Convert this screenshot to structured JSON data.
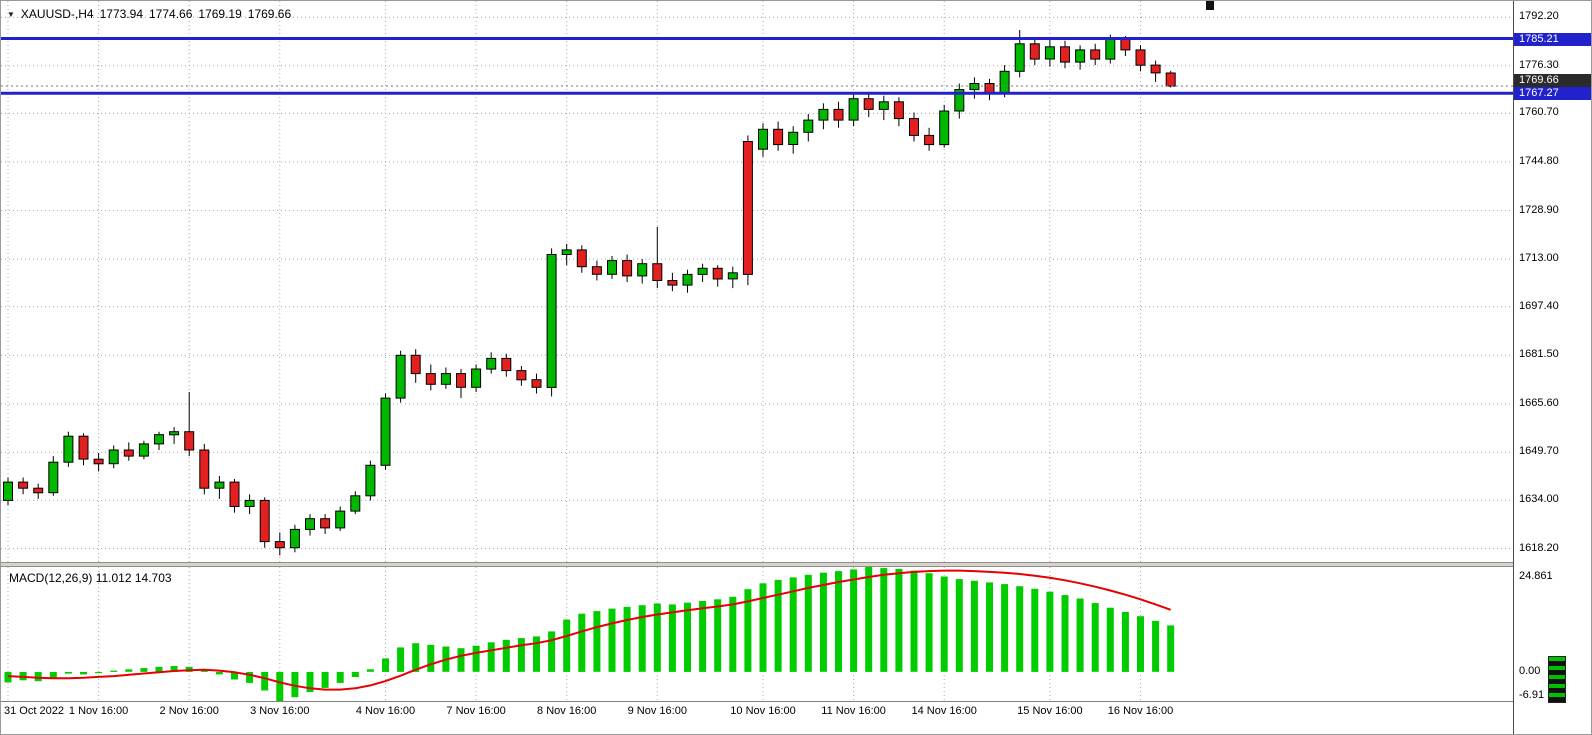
{
  "ui": {
    "symbol_title": "XAUUSD-,H4",
    "dropdown_icon": "▼",
    "ohlc": {
      "open": "1773.94",
      "high": "1774.66",
      "low": "1769.19",
      "close": "1769.66"
    }
  },
  "colors": {
    "background": "#ffffff",
    "grid": "#a8a8a8",
    "bull": "#00b800",
    "bear": "#e22020",
    "wick": "#000000",
    "level_line": "#2222cc",
    "current_tag_bg": "#2b2b2b",
    "macd_hist": "#00cc00",
    "macd_signal": "#e60000"
  },
  "chart_data": [
    {
      "type": "candlestick",
      "title": "XAUUSD-,H4",
      "price_range": [
        1613.5,
        1797.5
      ],
      "y_ticks": [
        1792.2,
        1776.3,
        1760.7,
        1744.8,
        1728.9,
        1713.0,
        1697.4,
        1681.5,
        1665.6,
        1649.7,
        1634.0,
        1618.2
      ],
      "x_labels": [
        {
          "text": "31 Oct 2022",
          "i": 0
        },
        {
          "text": "1 Nov 16:00",
          "i": 6
        },
        {
          "text": "2 Nov 16:00",
          "i": 12
        },
        {
          "text": "3 Nov 16:00",
          "i": 18
        },
        {
          "text": "4 Nov 16:00",
          "i": 25
        },
        {
          "text": "7 Nov 16:00",
          "i": 31
        },
        {
          "text": "8 Nov 16:00",
          "i": 37
        },
        {
          "text": "9 Nov 16:00",
          "i": 43
        },
        {
          "text": "10 Nov 16:00",
          "i": 50
        },
        {
          "text": "11 Nov 16:00",
          "i": 56
        },
        {
          "text": "14 Nov 16:00",
          "i": 62
        },
        {
          "text": "15 Nov 16:00",
          "i": 69
        },
        {
          "text": "16 Nov 16:00",
          "i": 75
        }
      ],
      "levels": [
        {
          "value": 1785.21,
          "label": "1785.21",
          "kind": "hline"
        },
        {
          "value": 1769.66,
          "label": "1769.66",
          "kind": "current"
        },
        {
          "value": 1767.27,
          "label": "1767.27",
          "kind": "hline"
        }
      ],
      "candles": [
        [
          1634.0,
          1641.5,
          1632.5,
          1640.0
        ],
        [
          1640.0,
          1641.5,
          1636.0,
          1638.0
        ],
        [
          1638.0,
          1639.5,
          1634.5,
          1636.5
        ],
        [
          1636.5,
          1648.5,
          1635.5,
          1646.5
        ],
        [
          1646.5,
          1656.5,
          1645.0,
          1655.0
        ],
        [
          1655.0,
          1656.0,
          1645.5,
          1647.5
        ],
        [
          1647.5,
          1649.5,
          1643.5,
          1646.0
        ],
        [
          1646.0,
          1652.0,
          1644.5,
          1650.5
        ],
        [
          1650.5,
          1653.0,
          1647.0,
          1648.5
        ],
        [
          1648.5,
          1653.5,
          1647.5,
          1652.5
        ],
        [
          1652.5,
          1656.5,
          1650.5,
          1655.5
        ],
        [
          1655.5,
          1658.0,
          1652.5,
          1656.5
        ],
        [
          1656.5,
          1669.5,
          1648.5,
          1650.5
        ],
        [
          1650.5,
          1652.5,
          1636.0,
          1638.0
        ],
        [
          1638.0,
          1642.0,
          1634.5,
          1640.0
        ],
        [
          1640.0,
          1641.0,
          1630.0,
          1632.0
        ],
        [
          1632.0,
          1636.0,
          1629.5,
          1634.0
        ],
        [
          1634.0,
          1635.0,
          1618.5,
          1620.5
        ],
        [
          1620.5,
          1623.5,
          1616.0,
          1618.5
        ],
        [
          1618.5,
          1626.0,
          1617.0,
          1624.5
        ],
        [
          1624.5,
          1629.5,
          1622.5,
          1628.0
        ],
        [
          1628.0,
          1629.5,
          1623.0,
          1625.0
        ],
        [
          1625.0,
          1632.0,
          1624.0,
          1630.5
        ],
        [
          1630.5,
          1637.0,
          1629.5,
          1635.5
        ],
        [
          1635.5,
          1647.0,
          1634.0,
          1645.5
        ],
        [
          1645.5,
          1669.0,
          1644.0,
          1667.5
        ],
        [
          1667.5,
          1683.0,
          1666.0,
          1681.5
        ],
        [
          1681.5,
          1683.5,
          1672.5,
          1675.5
        ],
        [
          1675.5,
          1678.5,
          1670.0,
          1672.0
        ],
        [
          1672.0,
          1677.5,
          1670.5,
          1675.5
        ],
        [
          1675.5,
          1677.0,
          1667.5,
          1671.0
        ],
        [
          1671.0,
          1678.5,
          1669.5,
          1677.0
        ],
        [
          1677.0,
          1682.5,
          1675.5,
          1680.5
        ],
        [
          1680.5,
          1682.0,
          1674.5,
          1676.5
        ],
        [
          1676.5,
          1678.0,
          1671.5,
          1673.5
        ],
        [
          1673.5,
          1675.5,
          1669.0,
          1671.0
        ],
        [
          1671.0,
          1716.5,
          1668.0,
          1714.5
        ],
        [
          1714.5,
          1718.0,
          1711.0,
          1716.0
        ],
        [
          1716.0,
          1717.5,
          1708.5,
          1710.5
        ],
        [
          1710.5,
          1712.5,
          1706.0,
          1708.0
        ],
        [
          1708.0,
          1714.0,
          1706.5,
          1712.5
        ],
        [
          1712.5,
          1714.5,
          1705.5,
          1707.5
        ],
        [
          1707.5,
          1713.0,
          1705.0,
          1711.5
        ],
        [
          1711.5,
          1723.5,
          1703.5,
          1706.0
        ],
        [
          1706.0,
          1708.5,
          1702.5,
          1704.5
        ],
        [
          1704.5,
          1709.5,
          1702.0,
          1708.0
        ],
        [
          1708.0,
          1711.5,
          1705.5,
          1710.0
        ],
        [
          1710.0,
          1711.0,
          1704.0,
          1706.5
        ],
        [
          1706.5,
          1710.5,
          1703.5,
          1708.5
        ],
        [
          1751.5,
          1753.5,
          1704.5,
          1708.0
        ],
        [
          1749.0,
          1757.5,
          1746.5,
          1755.5
        ],
        [
          1755.5,
          1758.0,
          1748.5,
          1750.5
        ],
        [
          1750.5,
          1756.5,
          1747.5,
          1754.5
        ],
        [
          1754.5,
          1760.5,
          1751.5,
          1758.5
        ],
        [
          1758.5,
          1764.0,
          1755.5,
          1762.0
        ],
        [
          1762.0,
          1764.5,
          1756.0,
          1758.5
        ],
        [
          1758.5,
          1767.0,
          1756.5,
          1765.5
        ],
        [
          1765.5,
          1767.5,
          1759.5,
          1762.0
        ],
        [
          1762.0,
          1766.5,
          1758.5,
          1764.5
        ],
        [
          1764.5,
          1766.0,
          1756.5,
          1759.0
        ],
        [
          1759.0,
          1761.0,
          1751.5,
          1753.5
        ],
        [
          1753.5,
          1756.0,
          1748.5,
          1750.5
        ],
        [
          1750.5,
          1763.5,
          1749.5,
          1761.5
        ],
        [
          1761.5,
          1770.5,
          1759.0,
          1768.5
        ],
        [
          1768.5,
          1772.5,
          1765.5,
          1770.5
        ],
        [
          1770.5,
          1772.0,
          1765.0,
          1767.5
        ],
        [
          1767.5,
          1776.5,
          1766.0,
          1774.5
        ],
        [
          1774.5,
          1788.0,
          1772.5,
          1783.5
        ],
        [
          1783.5,
          1785.5,
          1776.5,
          1778.5
        ],
        [
          1778.5,
          1785.5,
          1776.0,
          1782.5
        ],
        [
          1782.5,
          1784.5,
          1775.5,
          1777.5
        ],
        [
          1777.5,
          1783.0,
          1775.0,
          1781.5
        ],
        [
          1781.5,
          1783.5,
          1776.5,
          1778.5
        ],
        [
          1778.5,
          1786.5,
          1777.0,
          1785.0
        ],
        [
          1785.0,
          1786.0,
          1779.5,
          1781.5
        ],
        [
          1781.5,
          1783.0,
          1774.5,
          1776.5
        ],
        [
          1776.5,
          1778.0,
          1771.0,
          1773.94
        ],
        [
          1773.94,
          1774.66,
          1769.19,
          1769.66
        ]
      ]
    },
    {
      "type": "macd",
      "label": "MACD(12,26,9) 11.012 14.703",
      "params": "12,26,9",
      "values_display": [
        "11.012",
        "14.703"
      ],
      "range": [
        -6.91,
        24.861
      ],
      "y_ticks": [
        {
          "v": 24.861,
          "label": "24.861"
        },
        {
          "v": 0,
          "label": "0.00"
        },
        {
          "v": -6.91,
          "label": "-6.91"
        }
      ],
      "histogram": [
        -2.5,
        -2.0,
        -2.2,
        -1.4,
        -0.4,
        -0.6,
        -0.3,
        0.3,
        0.6,
        0.9,
        1.2,
        1.4,
        1.2,
        0.3,
        -0.6,
        -1.8,
        -2.6,
        -4.4,
        -6.91,
        -6.0,
        -4.8,
        -3.8,
        -2.6,
        -1.2,
        0.6,
        3.2,
        5.8,
        6.8,
        6.4,
        6.0,
        5.6,
        6.2,
        7.0,
        7.6,
        8.0,
        8.4,
        9.6,
        12.4,
        13.8,
        14.4,
        15.0,
        15.4,
        15.8,
        16.2,
        16.0,
        16.4,
        16.8,
        17.2,
        17.8,
        19.6,
        21.0,
        21.8,
        22.4,
        23.0,
        23.5,
        23.9,
        24.3,
        24.861,
        24.6,
        24.4,
        24.0,
        23.4,
        22.6,
        22.0,
        21.6,
        21.2,
        20.8,
        20.3,
        19.7,
        19.0,
        18.2,
        17.4,
        16.3,
        15.2,
        14.2,
        13.2,
        12.1,
        11.012
      ],
      "signal": [
        -1.0,
        -1.2,
        -1.4,
        -1.5,
        -1.5,
        -1.4,
        -1.2,
        -1.0,
        -0.7,
        -0.4,
        -0.1,
        0.2,
        0.4,
        0.5,
        0.3,
        -0.1,
        -0.7,
        -1.5,
        -2.5,
        -3.3,
        -3.9,
        -4.2,
        -4.2,
        -3.9,
        -3.2,
        -2.2,
        -0.9,
        0.5,
        1.8,
        2.9,
        3.8,
        4.5,
        5.1,
        5.7,
        6.3,
        6.8,
        7.5,
        8.5,
        9.6,
        10.6,
        11.5,
        12.3,
        13.0,
        13.6,
        14.1,
        14.6,
        15.1,
        15.5,
        16.0,
        16.7,
        17.5,
        18.3,
        19.1,
        19.9,
        20.6,
        21.3,
        21.9,
        22.5,
        23.0,
        23.4,
        23.7,
        23.9,
        24.0,
        24.0,
        23.9,
        23.7,
        23.5,
        23.2,
        22.8,
        22.3,
        21.7,
        21.0,
        20.2,
        19.3,
        18.3,
        17.2,
        16.0,
        14.703
      ]
    }
  ]
}
